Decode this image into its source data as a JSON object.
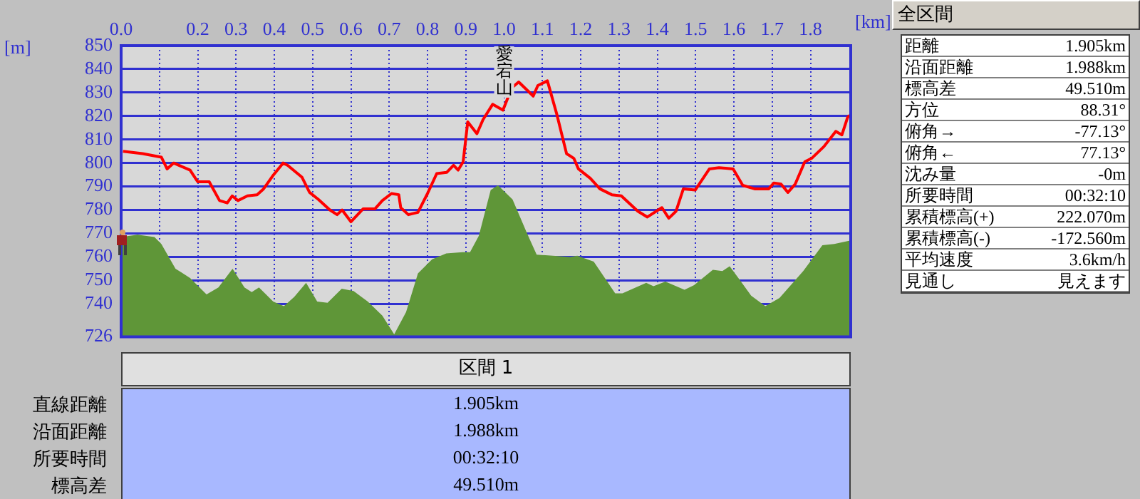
{
  "chart_data": {
    "type": "line",
    "xlabel": "[km]",
    "ylabel": "[m]",
    "grid": true,
    "legend": false,
    "xlim": [
      0,
      1.905
    ],
    "ylim": [
      726,
      850
    ],
    "xticks": [
      {
        "value": 0,
        "label": "0.0"
      },
      {
        "value": 0.1,
        "label": null
      },
      0.2,
      0.3,
      0.4,
      0.5,
      0.6,
      0.7,
      0.8,
      0.9,
      {
        "value": 1,
        "label": "1.0"
      },
      1.1,
      1.2,
      1.3,
      1.4,
      1.5,
      1.6,
      1.7,
      1.8
    ],
    "yticks": [
      726,
      740,
      750,
      760,
      770,
      780,
      790,
      800,
      810,
      820,
      830,
      840,
      850
    ],
    "series": [
      {
        "type": "area",
        "color": "#5f9638",
        "x": [
          0,
          0.043,
          0.087,
          0.105,
          0.142,
          0.18,
          0.223,
          0.254,
          0.291,
          0.322,
          0.341,
          0.36,
          0.397,
          0.425,
          0.452,
          0.483,
          0.512,
          0.539,
          0.576,
          0.607,
          0.644,
          0.682,
          0.713,
          0.744,
          0.775,
          0.812,
          0.849,
          0.892,
          0.911,
          0.934,
          0.965,
          0.984,
          1.022,
          1.06,
          1.085,
          1.172,
          1.191,
          1.234,
          1.29,
          1.309,
          1.371,
          1.39,
          1.421,
          1.471,
          1.496,
          1.545,
          1.57,
          1.589,
          1.614,
          1.645,
          1.682,
          1.719,
          1.781,
          1.831,
          1.862,
          1.905
        ],
        "values": [
          768.5,
          769.5,
          768.5,
          765.5,
          755,
          751,
          744,
          747,
          755,
          747,
          745,
          747,
          741,
          739,
          743,
          749,
          741,
          740.5,
          746.5,
          745.5,
          741,
          735,
          727,
          736.5,
          753,
          759,
          761.5,
          762,
          762,
          769,
          788.5,
          790.5,
          784.5,
          770,
          761,
          760,
          760.5,
          758,
          744.5,
          744.5,
          749,
          747.5,
          749.5,
          746,
          748,
          754.5,
          754,
          756,
          750.5,
          743.5,
          739,
          742.5,
          754,
          765,
          765.5,
          767
        ]
      },
      {
        "color": "#ff0000",
        "x": [
          0.005,
          0.056,
          0.105,
          0.12,
          0.137,
          0.18,
          0.2,
          0.23,
          0.257,
          0.277,
          0.29,
          0.305,
          0.33,
          0.355,
          0.372,
          0.398,
          0.423,
          0.435,
          0.472,
          0.492,
          0.515,
          0.545,
          0.564,
          0.577,
          0.6,
          0.632,
          0.663,
          0.682,
          0.706,
          0.725,
          0.73,
          0.75,
          0.775,
          0.8,
          0.824,
          0.85,
          0.868,
          0.88,
          0.893,
          0.905,
          0.929,
          0.945,
          0.97,
          0.997,
          1.02,
          1.038,
          1.076,
          1.088,
          1.113,
          1.138,
          1.163,
          1.182,
          1.194,
          1.225,
          1.25,
          1.281,
          1.306,
          1.349,
          1.374,
          1.412,
          1.43,
          1.449,
          1.468,
          1.499,
          1.536,
          1.561,
          1.598,
          1.623,
          1.654,
          1.691,
          1.704,
          1.723,
          1.741,
          1.76,
          1.785,
          1.803,
          1.835,
          1.866,
          1.882,
          1.897,
          1.905
        ],
        "values": [
          805,
          804,
          802.5,
          797.5,
          800,
          797,
          792,
          792,
          784,
          783,
          786,
          784,
          786,
          786.5,
          789,
          795,
          800,
          799,
          794,
          787.5,
          784.5,
          780,
          778,
          780,
          775,
          780.5,
          780.5,
          784,
          787,
          786.5,
          781,
          778,
          779,
          787,
          795.5,
          796,
          799,
          797,
          800.5,
          817.5,
          812.5,
          818.5,
          825,
          822.5,
          832,
          834.5,
          828.5,
          833,
          835,
          820.5,
          804,
          802,
          797.5,
          793.5,
          789,
          786.5,
          786,
          779.5,
          777,
          781,
          776.5,
          779.5,
          789,
          788.5,
          797.5,
          798,
          797.5,
          790.5,
          789,
          789,
          791.5,
          791,
          787.5,
          791,
          800.5,
          802,
          807,
          813.5,
          812,
          819.5,
          820.5
        ]
      }
    ],
    "annotations": [
      {
        "text": "愛宕山",
        "x": 1.0,
        "y": 826
      },
      "全区間",
      "距離",
      "1.905km",
      "沿面距離",
      "1.988km",
      "標高差",
      "49.510m",
      "方位",
      "88.31°",
      "俯角→",
      "-77.13°",
      "俯角←",
      "77.13°",
      "沈み量",
      "-0m",
      "所要時間",
      "00:32:10",
      "累積標高(+)",
      "222.070m",
      "累積標高(-)",
      "-172.560m",
      "平均速度",
      "3.6km/h",
      "見通し",
      "見えます",
      "区間 1",
      "直線距離",
      "1.905km",
      "沿面距離",
      "1.988km",
      "所要時間",
      "00:32:10",
      "標高差",
      "49.510m"
    ]
  }
}
